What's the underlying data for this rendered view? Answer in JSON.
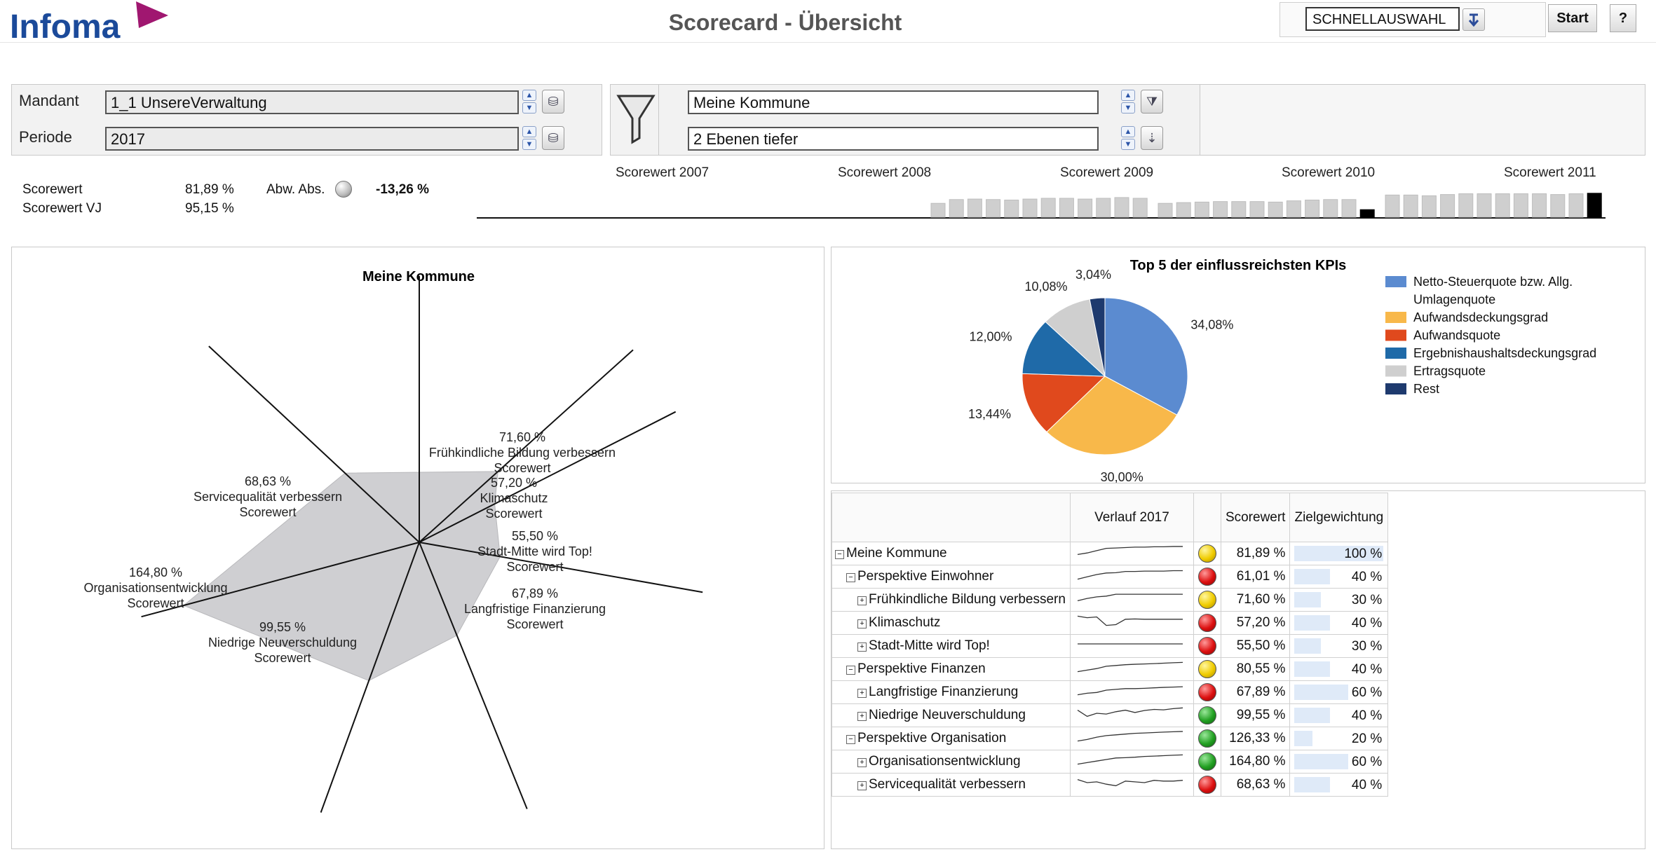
{
  "header": {
    "logo_text": "Infoma",
    "title": "Scorecard - Übersicht",
    "quick_select_value": "SCHNELLAUSWAHL",
    "start_label": "Start",
    "help_label": "?"
  },
  "filters": {
    "mandant_label": "Mandant",
    "mandant_value": "1_1 UnsereVerwaltung",
    "periode_label": "Periode",
    "periode_value": "2017",
    "org_value": "Meine Kommune",
    "level_value": "2 Ebenen tiefer"
  },
  "kpi": {
    "scorewert_label": "Scorewert",
    "scorewert_value": "81,89 %",
    "scorewert_vj_label": "Scorewert VJ",
    "scorewert_vj_value": "95,15 %",
    "abw_label": "Abw. Abs.",
    "abw_value": "-13,26 %"
  },
  "history": {
    "years": [
      "Scorewert 2007",
      "Scorewert 2008",
      "Scorewert 2009",
      "Scorewert 2010",
      "Scorewert 2011"
    ],
    "bars": [
      [
        0,
        0,
        0,
        0,
        0,
        0,
        0,
        0,
        0,
        0,
        0,
        0
      ],
      [
        0,
        0,
        0,
        0,
        0,
        0,
        0,
        0,
        0,
        0,
        0,
        0
      ],
      [
        0.55,
        0.7,
        0.72,
        0.7,
        0.68,
        0.72,
        0.75,
        0.75,
        0.72,
        0.75,
        0.78,
        0.75
      ],
      [
        0.55,
        0.58,
        0.6,
        0.62,
        0.62,
        0.62,
        0.6,
        0.65,
        0.68,
        0.7,
        0.7,
        0.3
      ],
      [
        0.88,
        0.88,
        0.85,
        0.9,
        0.93,
        0.93,
        0.93,
        0.93,
        0.93,
        0.9,
        0.93,
        0.95
      ]
    ]
  },
  "radar": {
    "title": "Meine Kommune",
    "axes": [
      {
        "label": "Frühkindliche Bildung verbessern\nScorewert",
        "pct": "71,60 %",
        "value": 71.6
      },
      {
        "label": "Klimaschutz\nScorewert",
        "pct": "57,20 %",
        "value": 57.2
      },
      {
        "label": "Stadt-Mitte wird Top!\nScorewert",
        "pct": "55,50 %",
        "value": 55.5
      },
      {
        "label": "Langfristige Finanzierung\nScorewert",
        "pct": "67,89 %",
        "value": 67.89
      },
      {
        "label": "Niedrige Neuverschuldung\nScorewert",
        "pct": "99,55 %",
        "value": 99.55
      },
      {
        "label": "Organisationsentwicklung\nScorewert",
        "pct": "164,80 %",
        "value": 164.8
      },
      {
        "label": "Servicequalität verbessern\nScorewert",
        "pct": "68,63 %",
        "value": 68.63
      }
    ]
  },
  "chart_data": {
    "type": "pie",
    "title": "Top 5 der einflussreichsten KPIs",
    "slices": [
      {
        "label": "Netto-Steuerquote bzw. Allg. Umlagenquote",
        "value": 34.08,
        "text": "34,08%",
        "color": "#5b8bd0"
      },
      {
        "label": "Aufwandsdeckungsgrad",
        "value": 30.0,
        "text": "30,00%",
        "color": "#f8b84a"
      },
      {
        "label": "Aufwandsquote",
        "value": 13.44,
        "text": "13,44%",
        "color": "#e0491d"
      },
      {
        "label": "Ergebnishaushaltsdeckungsgrad",
        "value": 12.0,
        "text": "12,00%",
        "color": "#1f6aa8"
      },
      {
        "label": "Ertragsquote",
        "value": 10.08,
        "text": "10,08%",
        "color": "#cfcfcf"
      },
      {
        "label": "Rest",
        "value": 3.04,
        "text": "3,04%",
        "color": "#1e3a6e"
      }
    ],
    "legend": [
      "Netto-Steuerquote bzw. Allg.",
      "Umlagenquote",
      "Aufwandsdeckungsgrad",
      "Aufwandsquote",
      "Ergebnishaushaltsdeckungsgrad",
      "Ertragsquote",
      "Rest"
    ]
  },
  "table": {
    "headers": {
      "verlauf": "Verlauf 2017",
      "scorewert": "Scorewert",
      "ziel": "Zielgewichtung"
    },
    "rows": [
      {
        "name": "Meine Kommune",
        "level": 0,
        "exp": "−",
        "light": "yellow",
        "score": "81,89 %",
        "weight": "100 %",
        "w": 1.0,
        "spark": [
          0.3,
          0.4,
          0.55,
          0.7,
          0.72,
          0.75,
          0.78,
          0.78,
          0.8,
          0.8,
          0.82,
          0.82
        ]
      },
      {
        "name": "Perspektive Einwohner",
        "level": 1,
        "exp": "−",
        "light": "red",
        "score": "61,01 %",
        "weight": "40 %",
        "w": 0.4,
        "spark": [
          0.2,
          0.35,
          0.5,
          0.6,
          0.62,
          0.7,
          0.7,
          0.72,
          0.72,
          0.72,
          0.75,
          0.75
        ]
      },
      {
        "name": "Frühkindliche Bildung verbessern",
        "level": 2,
        "exp": "+",
        "light": "yellow",
        "score": "71,60 %",
        "weight": "30 %",
        "w": 0.3,
        "spark": [
          0.3,
          0.45,
          0.55,
          0.6,
          0.72,
          0.72,
          0.72,
          0.72,
          0.72,
          0.72,
          0.72,
          0.72
        ]
      },
      {
        "name": "Klimaschutz",
        "level": 2,
        "exp": "+",
        "light": "red",
        "score": "57,20 %",
        "weight": "40 %",
        "w": 0.4,
        "spark": [
          0.8,
          0.7,
          0.75,
          0.2,
          0.25,
          0.6,
          0.62,
          0.6,
          0.6,
          0.6,
          0.6,
          0.6
        ]
      },
      {
        "name": "Stadt-Mitte wird Top!",
        "level": 2,
        "exp": "+",
        "light": "red",
        "score": "55,50 %",
        "weight": "30 %",
        "w": 0.3,
        "spark": [
          0.5,
          0.5,
          0.5,
          0.5,
          0.5,
          0.5,
          0.5,
          0.5,
          0.5,
          0.5,
          0.5,
          0.5
        ]
      },
      {
        "name": "Perspektive Finanzen",
        "level": 1,
        "exp": "−",
        "light": "yellow",
        "score": "80,55 %",
        "weight": "40 %",
        "w": 0.4,
        "spark": [
          0.2,
          0.3,
          0.4,
          0.55,
          0.6,
          0.65,
          0.68,
          0.7,
          0.72,
          0.75,
          0.78,
          0.8
        ]
      },
      {
        "name": "Langfristige Finanzierung",
        "level": 2,
        "exp": "+",
        "light": "red",
        "score": "67,89 %",
        "weight": "60 %",
        "w": 0.6,
        "spark": [
          0.2,
          0.3,
          0.35,
          0.5,
          0.55,
          0.6,
          0.6,
          0.62,
          0.65,
          0.68,
          0.7,
          0.72
        ]
      },
      {
        "name": "Niedrige Neuverschuldung",
        "level": 2,
        "exp": "+",
        "light": "green",
        "score": "99,55 %",
        "weight": "40 %",
        "w": 0.4,
        "spark": [
          0.7,
          0.3,
          0.5,
          0.45,
          0.6,
          0.7,
          0.55,
          0.68,
          0.75,
          0.72,
          0.8,
          0.85
        ]
      },
      {
        "name": "Perspektive Organisation",
        "level": 1,
        "exp": "−",
        "light": "green",
        "score": "126,33 %",
        "weight": "20 %",
        "w": 0.2,
        "spark": [
          0.2,
          0.3,
          0.45,
          0.55,
          0.6,
          0.65,
          0.7,
          0.72,
          0.75,
          0.78,
          0.8,
          0.82
        ]
      },
      {
        "name": "Organisationsentwicklung",
        "level": 2,
        "exp": "+",
        "light": "green",
        "score": "164,80 %",
        "weight": "60 %",
        "w": 0.6,
        "spark": [
          0.2,
          0.3,
          0.4,
          0.5,
          0.6,
          0.62,
          0.65,
          0.7,
          0.72,
          0.75,
          0.78,
          0.8
        ]
      },
      {
        "name": "Servicequalität verbessern",
        "level": 2,
        "exp": "+",
        "light": "red",
        "score": "68,63 %",
        "weight": "40 %",
        "w": 0.4,
        "spark": [
          0.7,
          0.5,
          0.55,
          0.4,
          0.3,
          0.6,
          0.55,
          0.5,
          0.65,
          0.6,
          0.6,
          0.65
        ]
      }
    ]
  }
}
